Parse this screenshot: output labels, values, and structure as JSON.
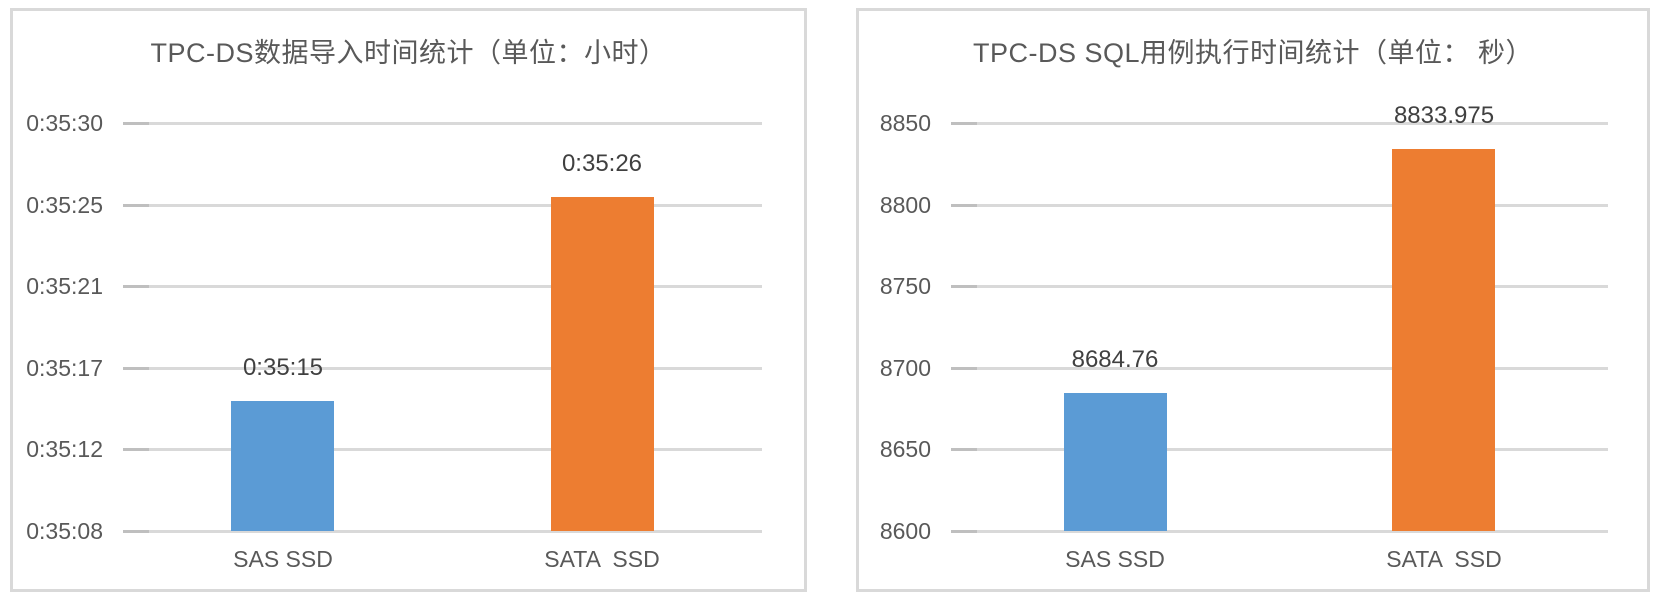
{
  "chart_data": [
    {
      "type": "bar",
      "title": "TPC-DS数据导入时间统计（单位：小时）",
      "categories": [
        "SAS SSD",
        "SATA  SSD"
      ],
      "values": [
        "0:35:15",
        "0:35:26"
      ],
      "values_numeric": [
        2115,
        2126
      ],
      "value_labels": [
        "0:35:15",
        "0:35:26"
      ],
      "y_tick_labels": [
        "0:35:30",
        "0:35:25",
        "0:35:21",
        "0:35:17",
        "0:35:12",
        "0:35:08"
      ],
      "y_range": [
        2108,
        2130
      ],
      "series_colors": [
        "#5b9bd5",
        "#ed7d31"
      ],
      "grid": "horizontal",
      "legend": "none"
    },
    {
      "type": "bar",
      "title": "TPC-DS SQL用例执行时间统计（单位： 秒）",
      "categories": [
        "SAS SSD",
        "SATA  SSD"
      ],
      "values": [
        8684.76,
        8833.975
      ],
      "values_numeric": [
        8684.76,
        8833.975
      ],
      "value_labels": [
        "8684.76",
        "8833.975"
      ],
      "y_tick_labels": [
        "8850",
        "8800",
        "8750",
        "8700",
        "8650",
        "8600"
      ],
      "y_range": [
        8600,
        8850
      ],
      "series_colors": [
        "#5b9bd5",
        "#ed7d31"
      ],
      "grid": "horizontal",
      "legend": "none"
    }
  ],
  "colors": {
    "bar_blue": "#5b9bd5",
    "bar_orange": "#ed7d31",
    "gridline": "#d9d9d9",
    "axis_tick": "#bfbfbf",
    "axis_text": "#595959",
    "data_label_text": "#404040",
    "panel_border": "#d9d9d9",
    "background": "#ffffff"
  }
}
